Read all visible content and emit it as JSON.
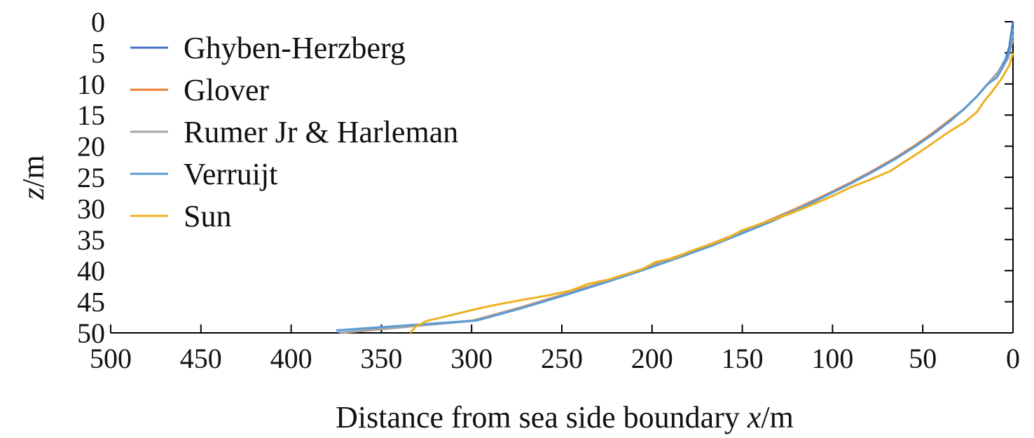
{
  "chart_data": {
    "type": "line",
    "xlabel_prefix": "Distance from sea side boundary ",
    "xlabel_var": "x",
    "xlabel_unit": "/m",
    "ylabel_var": "z",
    "ylabel_unit": "/m",
    "xlim": [
      500,
      0
    ],
    "ylim": [
      0,
      50
    ],
    "y_inverted": true,
    "x_ticks": [
      500,
      450,
      400,
      350,
      300,
      250,
      200,
      150,
      100,
      50,
      0
    ],
    "y_ticks": [
      0,
      5,
      10,
      15,
      20,
      25,
      30,
      35,
      40,
      45,
      50
    ],
    "grid": false,
    "legend_position": "top-left",
    "series": [
      {
        "name": "Ghyben-Herzberg",
        "color": "#4472C4",
        "points": [
          [
            0,
            0
          ],
          [
            1,
            2
          ],
          [
            2,
            4
          ],
          [
            4,
            6
          ],
          [
            8,
            8
          ],
          [
            14,
            10
          ],
          [
            20,
            12
          ],
          [
            27,
            14
          ],
          [
            35,
            16
          ],
          [
            44,
            18
          ],
          [
            54,
            20
          ],
          [
            65,
            22
          ],
          [
            77,
            24
          ],
          [
            90,
            26
          ],
          [
            104,
            28
          ],
          [
            118,
            30
          ],
          [
            134,
            32
          ],
          [
            150,
            34
          ],
          [
            168,
            36
          ],
          [
            187,
            38
          ],
          [
            206,
            40
          ],
          [
            227,
            42
          ],
          [
            249,
            44
          ],
          [
            272,
            46
          ],
          [
            297,
            48
          ],
          [
            374,
            50
          ]
        ]
      },
      {
        "name": "Glover",
        "color": "#ED7D31",
        "points": [
          [
            0,
            3
          ],
          [
            1,
            4
          ],
          [
            3,
            6
          ],
          [
            8,
            8
          ],
          [
            14,
            10
          ],
          [
            20,
            12
          ],
          [
            27,
            14
          ],
          [
            36,
            16
          ],
          [
            45,
            18
          ],
          [
            55,
            20
          ],
          [
            66,
            22
          ],
          [
            78,
            24
          ],
          [
            91,
            26
          ],
          [
            105,
            28
          ],
          [
            120,
            30
          ],
          [
            136,
            32
          ],
          [
            152,
            34
          ],
          [
            170,
            36
          ],
          [
            189,
            38
          ],
          [
            208,
            40
          ],
          [
            229,
            42
          ],
          [
            251,
            44
          ],
          [
            274,
            46
          ],
          [
            299,
            48
          ],
          [
            372,
            50
          ]
        ]
      },
      {
        "name": "Rumer Jr & Harleman",
        "color": "#A5A5A5",
        "points": [
          [
            0,
            2
          ],
          [
            1,
            4
          ],
          [
            3,
            6
          ],
          [
            8,
            8
          ],
          [
            14,
            10
          ],
          [
            20,
            12
          ],
          [
            27,
            14
          ],
          [
            35,
            16
          ],
          [
            44,
            18
          ],
          [
            54,
            20
          ],
          [
            65,
            22
          ],
          [
            77,
            24
          ],
          [
            90,
            26
          ],
          [
            104,
            28
          ],
          [
            119,
            30
          ],
          [
            135,
            32
          ],
          [
            151,
            34
          ],
          [
            169,
            36
          ],
          [
            188,
            38
          ],
          [
            207,
            40
          ],
          [
            228,
            42
          ],
          [
            250,
            44
          ],
          [
            273,
            46
          ],
          [
            298,
            48
          ],
          [
            373,
            50
          ]
        ]
      },
      {
        "name": "Verruijt",
        "color": "#5B9BD5",
        "points": [
          [
            0,
            1
          ],
          [
            1,
            3
          ],
          [
            2,
            5
          ],
          [
            5,
            7
          ],
          [
            9,
            9
          ],
          [
            14,
            10
          ],
          [
            20,
            12
          ],
          [
            27,
            14
          ],
          [
            35,
            16
          ],
          [
            44,
            18
          ],
          [
            54,
            20
          ],
          [
            65,
            22
          ],
          [
            77,
            24
          ],
          [
            90,
            26
          ],
          [
            104,
            28
          ],
          [
            118,
            30
          ],
          [
            133,
            32
          ],
          [
            150,
            34
          ],
          [
            167,
            36
          ],
          [
            186,
            38
          ],
          [
            206,
            40
          ],
          [
            227,
            42
          ],
          [
            249,
            44
          ],
          [
            272,
            46
          ],
          [
            297,
            48
          ],
          [
            375,
            49.6
          ]
        ]
      },
      {
        "name": "Sun",
        "color": "#EDB120",
        "points": [
          [
            0,
            5
          ],
          [
            2,
            7
          ],
          [
            6,
            9
          ],
          [
            11,
            11
          ],
          [
            16,
            12.8
          ],
          [
            20,
            14.5
          ],
          [
            27,
            16.2
          ],
          [
            35,
            17.6
          ],
          [
            44,
            19.4
          ],
          [
            52,
            21
          ],
          [
            60,
            22.5
          ],
          [
            68,
            24
          ],
          [
            80,
            25.5
          ],
          [
            90,
            26.6
          ],
          [
            100,
            28
          ],
          [
            112,
            29.5
          ],
          [
            125,
            31
          ],
          [
            140,
            32.5
          ],
          [
            150,
            33.5
          ],
          [
            160,
            35
          ],
          [
            170,
            36
          ],
          [
            180,
            37
          ],
          [
            188,
            38
          ],
          [
            198,
            38.6
          ],
          [
            205,
            39.7
          ],
          [
            215,
            40.6
          ],
          [
            225,
            41.5
          ],
          [
            235,
            42.1
          ],
          [
            245,
            43.2
          ],
          [
            258,
            44
          ],
          [
            270,
            44.6
          ],
          [
            285,
            45.4
          ],
          [
            295,
            46
          ],
          [
            305,
            46.7
          ],
          [
            315,
            47.4
          ],
          [
            325,
            48.1
          ],
          [
            331,
            49
          ],
          [
            334,
            50
          ]
        ]
      }
    ]
  }
}
